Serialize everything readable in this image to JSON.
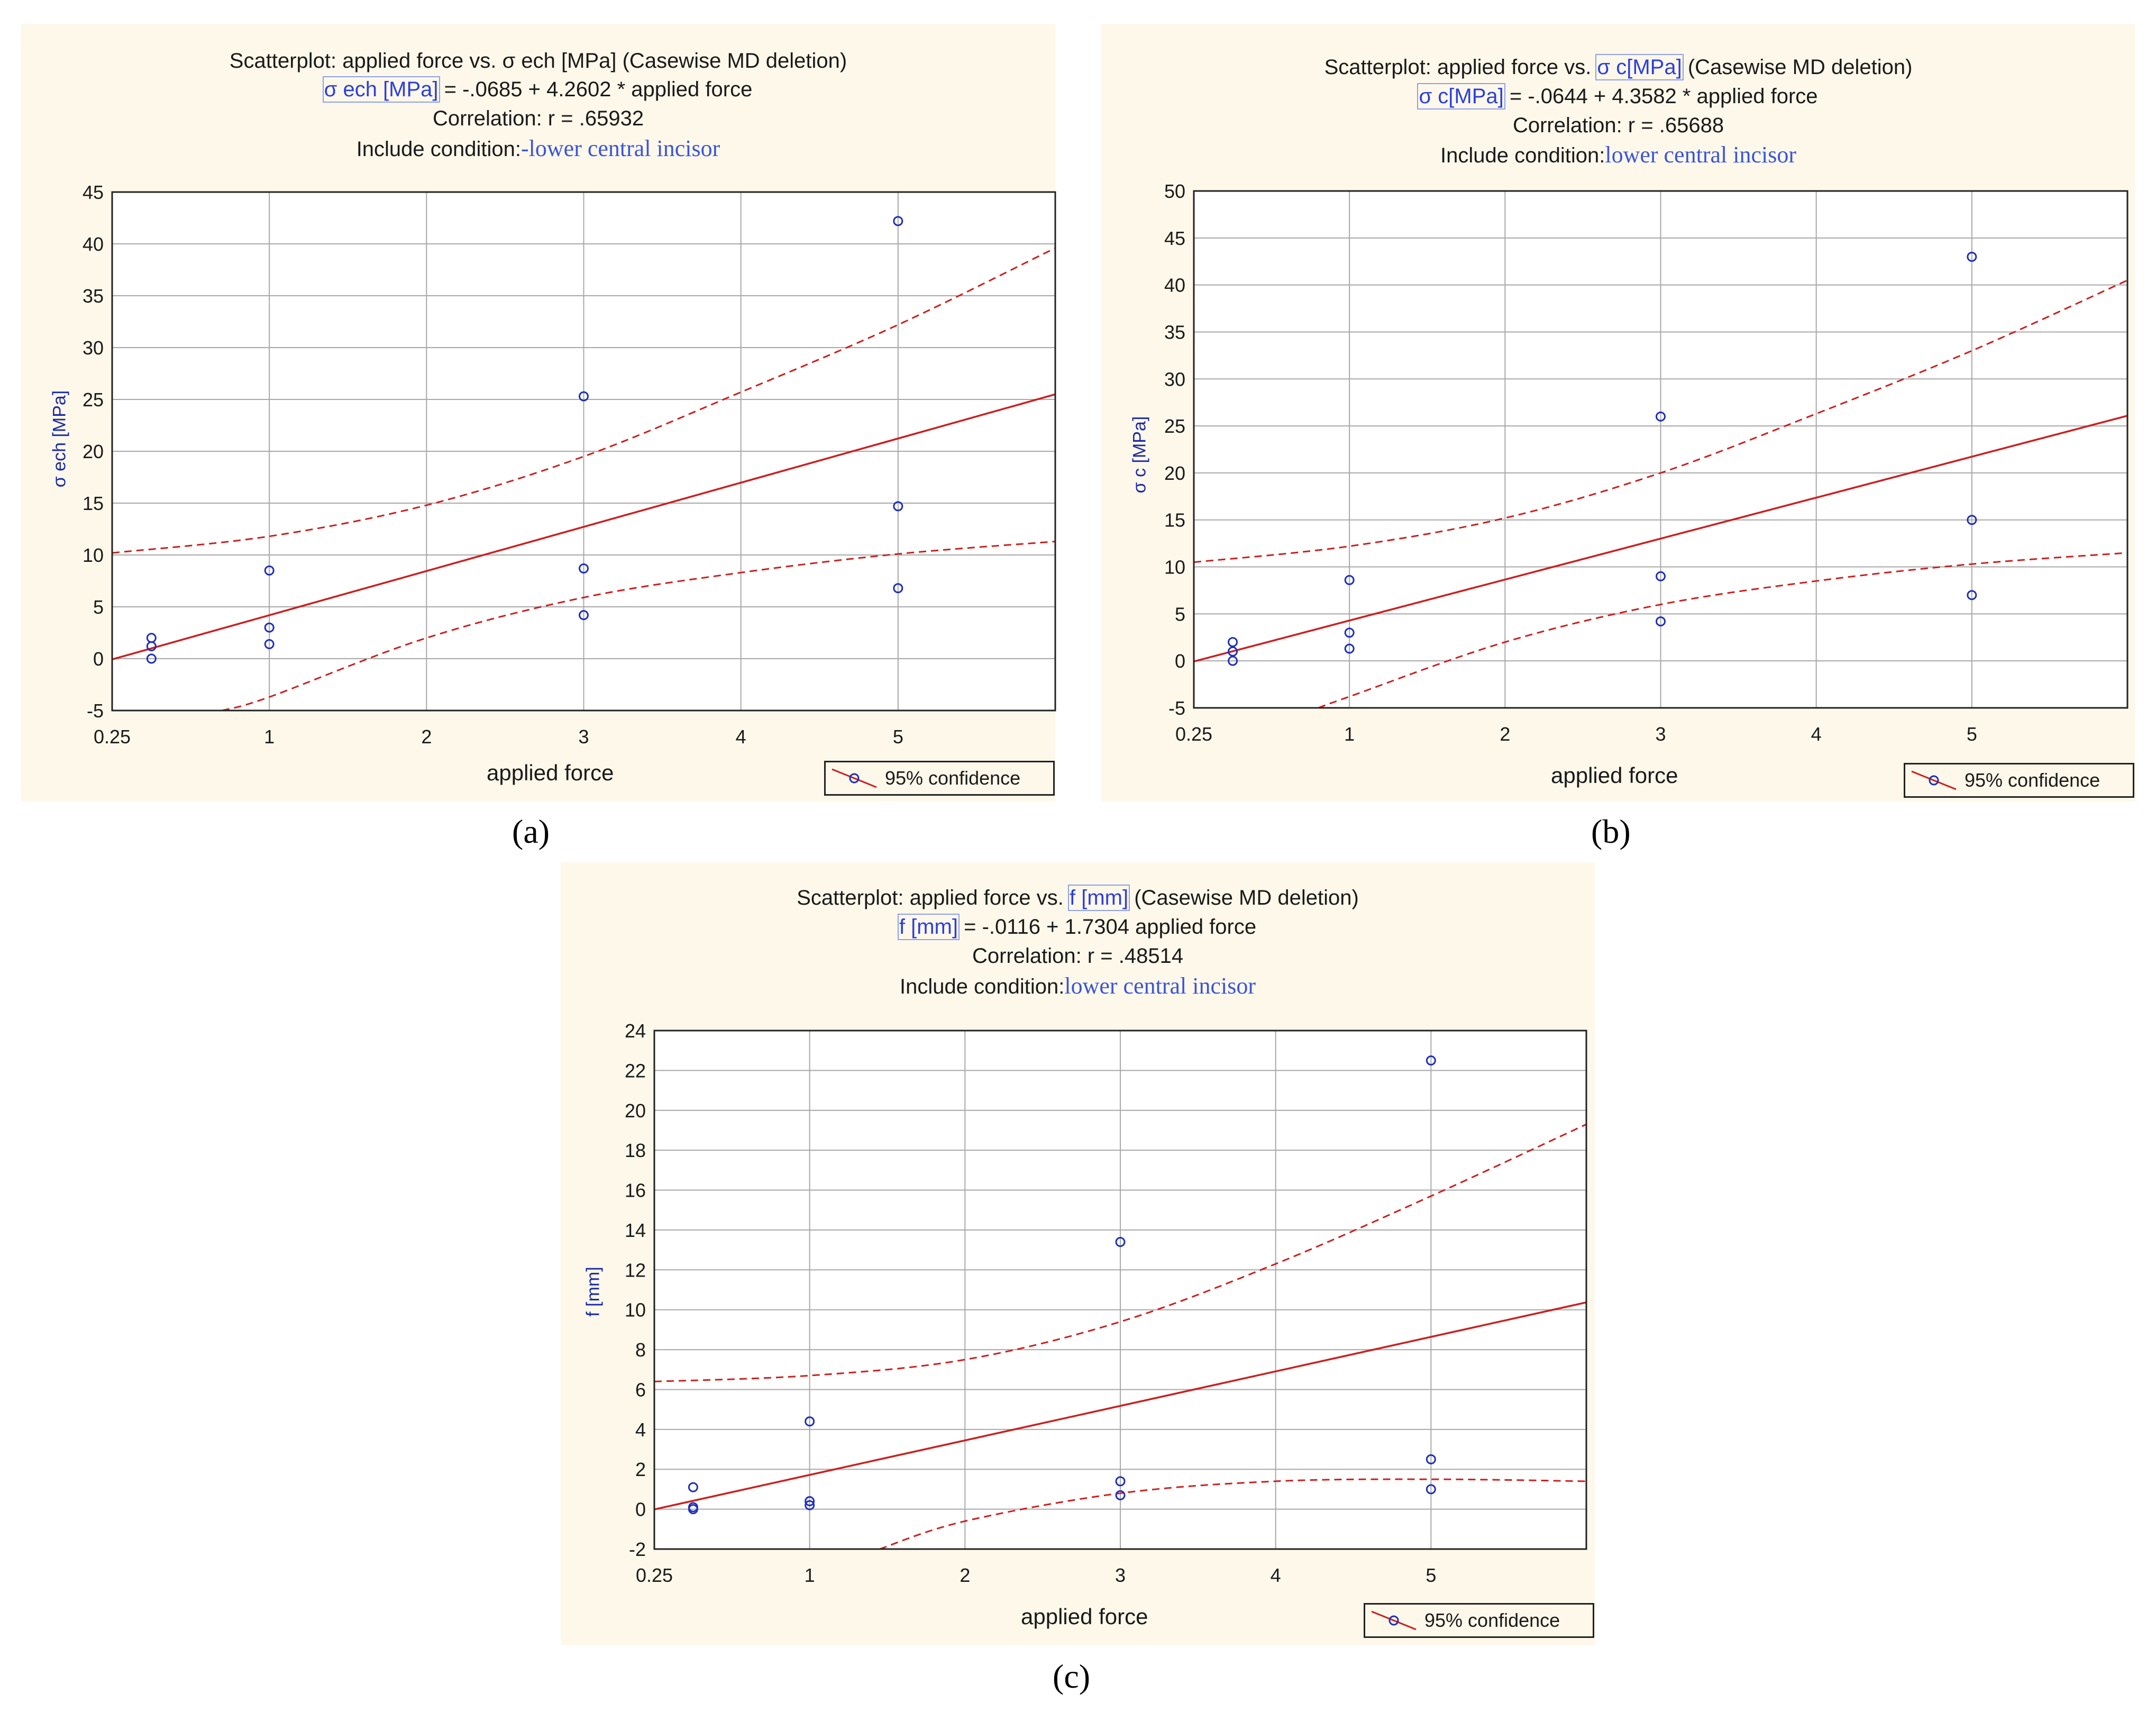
{
  "chart_data": [
    {
      "id": "a",
      "type": "scatter",
      "title": "Scatterplot: applied force vs. σ ech [MPa] (Casewise MD deletion)",
      "equation_var": "σ ech [MPa]",
      "equation_rest": " = -.0685 + 4.2602 * applied force",
      "correlation": "Correlation: r =  .65932",
      "include_prefix": "Include condition:",
      "include_value": "-lower central incisor",
      "xlabel": "applied force",
      "ylabel": "σ ech [MPa]",
      "x_tick_labels": [
        "0.25",
        "1",
        "2",
        "3",
        "4",
        "5"
      ],
      "x_tick_positions": [
        0,
        1,
        2,
        3,
        4,
        5
      ],
      "xlim": [
        0,
        6
      ],
      "ylim": [
        -5,
        45
      ],
      "y_ticks": [
        -5,
        0,
        5,
        10,
        15,
        20,
        25,
        30,
        35,
        40,
        45
      ],
      "intercept": -0.0685,
      "slope": 4.2602,
      "points": [
        [
          0.25,
          2.0
        ],
        [
          0.25,
          1.2
        ],
        [
          0.25,
          0.0
        ],
        [
          1,
          8.5
        ],
        [
          1,
          3.0
        ],
        [
          1,
          1.4
        ],
        [
          3,
          25.3
        ],
        [
          3,
          8.7
        ],
        [
          3,
          4.2
        ],
        [
          5,
          42.2
        ],
        [
          5,
          14.7
        ],
        [
          5,
          6.8
        ]
      ],
      "ci_upper": [
        [
          0,
          10.2
        ],
        [
          1,
          11.8
        ],
        [
          2,
          14.8
        ],
        [
          3,
          19.5
        ],
        [
          4,
          25.7
        ],
        [
          5,
          32.2
        ],
        [
          6,
          39.6
        ]
      ],
      "ci_lower": [
        [
          0.7,
          -5.0
        ],
        [
          1,
          -3.7
        ],
        [
          2,
          2.0
        ],
        [
          3,
          5.9
        ],
        [
          4,
          8.3
        ],
        [
          5,
          10.1
        ],
        [
          6,
          11.3
        ]
      ],
      "legend": "95% confidence",
      "caption_label": "a"
    },
    {
      "id": "b",
      "type": "scatter",
      "title": "Scatterplot: applied force vs. σ c[MPa] (Casewise MD deletion)",
      "title_parts": [
        "Scatterplot: applied force vs. ",
        "σ c[MPa]",
        " (Casewise MD deletion)"
      ],
      "equation_var": "σ c[MPa]",
      "equation_rest": " = -.0644 + 4.3582 * applied force",
      "correlation": "Correlation: r =  .65688",
      "include_prefix": "Include condition:",
      "include_value": "lower central incisor",
      "xlabel": "applied force",
      "ylabel": "σ c [MPa]",
      "x_tick_labels": [
        "0.25",
        "1",
        "2",
        "3",
        "4",
        "5"
      ],
      "x_tick_positions": [
        0,
        1,
        2,
        3,
        4,
        5
      ],
      "xlim": [
        0,
        6
      ],
      "ylim": [
        -5,
        50
      ],
      "y_ticks": [
        -5,
        0,
        5,
        10,
        15,
        20,
        25,
        30,
        35,
        40,
        45,
        50
      ],
      "intercept": -0.0644,
      "slope": 4.3582,
      "points": [
        [
          0.25,
          2.0
        ],
        [
          0.25,
          1.0
        ],
        [
          0.25,
          0.0
        ],
        [
          1,
          8.6
        ],
        [
          1,
          3.0
        ],
        [
          1,
          1.3
        ],
        [
          3,
          26.0
        ],
        [
          3,
          9.0
        ],
        [
          3,
          4.2
        ],
        [
          5,
          43.0
        ],
        [
          5,
          15.0
        ],
        [
          5,
          7.0
        ]
      ],
      "ci_upper": [
        [
          0,
          10.5
        ],
        [
          1,
          12.2
        ],
        [
          2,
          15.2
        ],
        [
          3,
          20.0
        ],
        [
          4,
          26.3
        ],
        [
          5,
          33.0
        ],
        [
          6,
          40.5
        ]
      ],
      "ci_lower": [
        [
          0.8,
          -5.0
        ],
        [
          1,
          -3.8
        ],
        [
          2,
          2.0
        ],
        [
          3,
          6.0
        ],
        [
          4,
          8.5
        ],
        [
          5,
          10.3
        ],
        [
          6,
          11.5
        ]
      ],
      "legend": "95% confidence",
      "caption_label": "b"
    },
    {
      "id": "c",
      "type": "scatter",
      "title": "Scatterplot: applied force vs. f [mm] (Casewise MD deletion)",
      "title_parts": [
        "Scatterplot: applied force vs. ",
        "f [mm]",
        " (Casewise MD deletion)"
      ],
      "equation_var": "f [mm]",
      "equation_rest": " = -.0116 + 1.7304  applied force",
      "correlation": "Correlation: r =  .48514",
      "include_prefix": "Include condition:",
      "include_value": "lower central incisor",
      "xlabel": "applied force",
      "ylabel": "f [mm]",
      "x_tick_labels": [
        "0.25",
        "1",
        "2",
        "3",
        "4",
        "5"
      ],
      "x_tick_positions": [
        0,
        1,
        2,
        3,
        4,
        5
      ],
      "xlim": [
        0,
        6
      ],
      "ylim": [
        -2,
        24
      ],
      "y_ticks": [
        -2,
        0,
        2,
        4,
        6,
        8,
        10,
        12,
        14,
        16,
        18,
        20,
        22,
        24
      ],
      "intercept": -0.0116,
      "slope": 1.7304,
      "points": [
        [
          0.25,
          1.1
        ],
        [
          0.25,
          0.1
        ],
        [
          0.25,
          0.0
        ],
        [
          1,
          4.4
        ],
        [
          1,
          0.4
        ],
        [
          1,
          0.2
        ],
        [
          3,
          13.4
        ],
        [
          3,
          1.4
        ],
        [
          3,
          0.7
        ],
        [
          5,
          22.5
        ],
        [
          5,
          2.5
        ],
        [
          5,
          1.0
        ]
      ],
      "ci_upper": [
        [
          0,
          6.4
        ],
        [
          1,
          6.7
        ],
        [
          2,
          7.5
        ],
        [
          3,
          9.4
        ],
        [
          4,
          12.3
        ],
        [
          5,
          15.7
        ],
        [
          6,
          19.3
        ]
      ],
      "ci_lower": [
        [
          1.45,
          -2.0
        ],
        [
          2,
          -0.6
        ],
        [
          3,
          0.8
        ],
        [
          4,
          1.4
        ],
        [
          5,
          1.5
        ],
        [
          6,
          1.4
        ]
      ],
      "legend": "95% confidence",
      "caption_label": "c"
    }
  ],
  "captions": [
    "(a)",
    "(b)",
    "(c)"
  ],
  "colors": {
    "panel_bg": "#fdf8ea",
    "fit_line": "#cc1f1f",
    "points": "#1f2fb8",
    "grid": "#a8a8a8"
  }
}
